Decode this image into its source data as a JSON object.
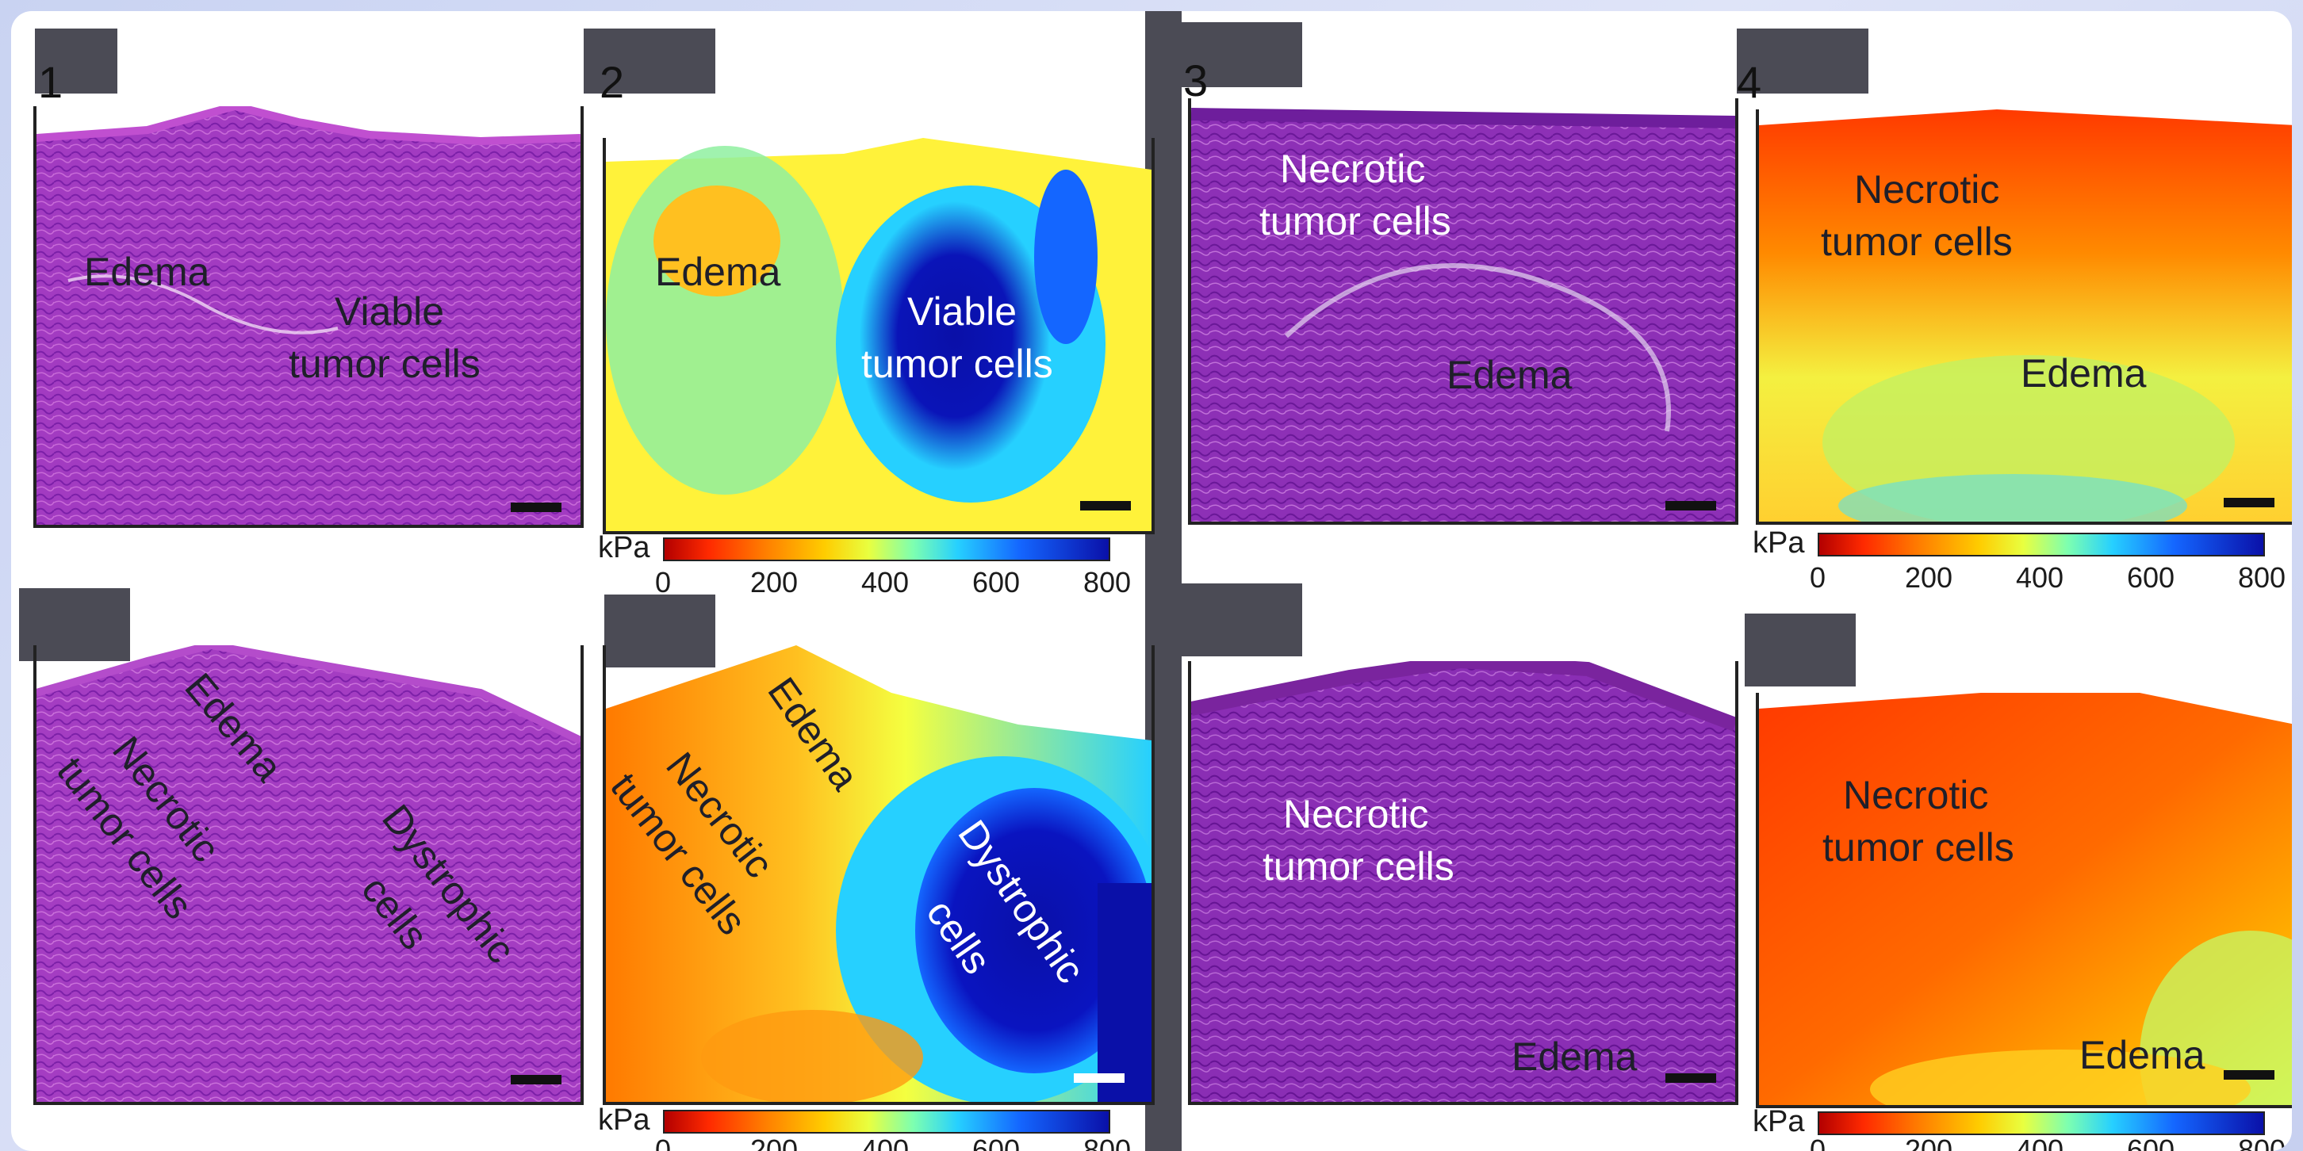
{
  "panels": [
    {
      "number": "1",
      "annotations": [
        "Edema",
        "Viable",
        "tumor cells"
      ]
    },
    {
      "number": "2",
      "annotations": [
        "Edema",
        "Viable",
        "tumor cells"
      ]
    },
    {
      "number": "3",
      "annotations": [
        "Necrotic",
        "tumor cells",
        "Edema"
      ]
    },
    {
      "number": "4",
      "annotations": [
        "Necrotic",
        "tumor cells",
        "Edema"
      ]
    },
    {
      "number": "",
      "annotations": [
        "Edema",
        "Necrotic",
        "tumor cells",
        "Dystrophic",
        "cells"
      ]
    },
    {
      "number": "",
      "annotations": [
        "Edema",
        "Necrotic",
        "tumor cells",
        "Dystrophic",
        "cells"
      ]
    },
    {
      "number": "",
      "annotations": [
        "Necrotic",
        "tumor cells",
        "Edema"
      ]
    },
    {
      "number": "",
      "annotations": [
        "Necrotic",
        "tumor cells",
        "Edema"
      ]
    }
  ],
  "colorbar": {
    "unit": "kPa",
    "ticks": [
      "0",
      "200",
      "400",
      "600",
      "800"
    ],
    "min": 0,
    "max": 800,
    "colors": [
      "#b30000",
      "#ff7a00",
      "#ffcc00",
      "#26d0ff",
      "#0a10a8"
    ]
  }
}
